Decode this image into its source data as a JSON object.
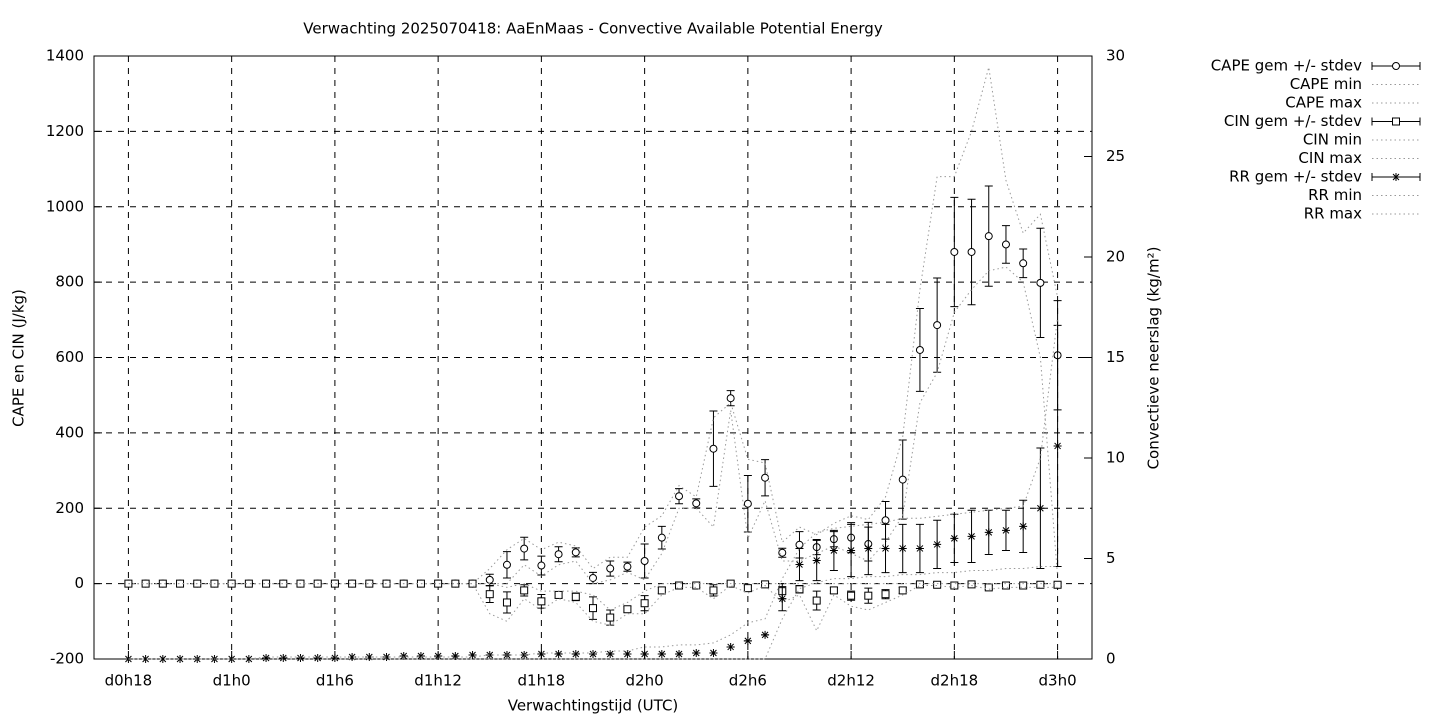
{
  "chart_data": {
    "type": "errorbar",
    "title": "Verwachting 2025070418: AaEnMaas - Convective Available Potential Energy",
    "xlabel": "Verwachtingstijd (UTC)",
    "ylabel": "CAPE en CIN (J/kg)",
    "y2label": "Convectieve neerslag (kg/m²)",
    "grid": true,
    "legend": "right",
    "x": [
      18,
      19,
      20,
      21,
      22,
      23,
      24,
      25,
      26,
      27,
      28,
      29,
      30,
      31,
      32,
      33,
      34,
      35,
      36,
      37,
      38,
      39,
      40,
      41,
      42,
      43,
      44,
      45,
      46,
      47,
      48,
      49,
      50,
      51,
      52,
      53,
      54,
      55,
      56,
      57,
      58,
      59,
      60,
      61,
      62,
      63,
      64,
      65,
      66,
      67,
      68,
      69,
      70,
      71,
      72
    ],
    "xlim": [
      16,
      74
    ],
    "xticks": [
      {
        "value": 18,
        "label": "d0h18"
      },
      {
        "value": 24,
        "label": "d1h0"
      },
      {
        "value": 30,
        "label": "d1h6"
      },
      {
        "value": 36,
        "label": "d1h12"
      },
      {
        "value": 42,
        "label": "d1h18"
      },
      {
        "value": 48,
        "label": "d2h0"
      },
      {
        "value": 54,
        "label": "d2h6"
      },
      {
        "value": 60,
        "label": "d2h12"
      },
      {
        "value": 66,
        "label": "d2h18"
      },
      {
        "value": 72,
        "label": "d3h0"
      }
    ],
    "ylim": [
      -200,
      1400
    ],
    "yticks": [
      -200,
      0,
      200,
      400,
      600,
      800,
      1000,
      1200,
      1400
    ],
    "y2lim": [
      0,
      30
    ],
    "y2ticks": [
      0,
      5,
      10,
      15,
      20,
      25,
      30
    ],
    "series": [
      {
        "name": "CAPE gem +/- stdev",
        "style": "errorbars",
        "marker": "circle",
        "color": "#000000",
        "values": [
          0,
          0,
          0,
          0,
          0,
          0,
          0,
          0,
          0,
          0,
          0,
          0,
          0,
          0,
          0,
          0,
          0,
          0,
          0,
          0,
          0,
          10,
          50,
          93,
          48,
          78,
          83,
          15,
          40,
          45,
          60,
          122,
          232,
          213,
          358,
          492,
          212,
          281,
          82,
          103,
          97,
          118,
          122,
          105,
          168,
          276,
          620,
          686,
          880,
          880,
          922,
          900,
          850,
          798,
          606
        ],
        "stdev": [
          0,
          0,
          0,
          0,
          0,
          0,
          0,
          0,
          0,
          0,
          0,
          0,
          0,
          0,
          0,
          0,
          0,
          0,
          0,
          0,
          0,
          15,
          35,
          30,
          25,
          20,
          12,
          15,
          20,
          12,
          45,
          30,
          20,
          12,
          100,
          20,
          75,
          48,
          12,
          35,
          20,
          20,
          40,
          45,
          50,
          105,
          110,
          125,
          145,
          140,
          133,
          50,
          38,
          145,
          145
        ]
      },
      {
        "name": "CAPE min",
        "style": "dotted",
        "color": "#999999",
        "values": [
          0,
          0,
          0,
          0,
          0,
          0,
          0,
          0,
          0,
          0,
          0,
          0,
          0,
          0,
          0,
          0,
          0,
          0,
          0,
          0,
          0,
          0,
          0,
          50,
          20,
          50,
          60,
          0,
          10,
          30,
          10,
          80,
          200,
          200,
          150,
          460,
          120,
          220,
          60,
          60,
          80,
          100,
          80,
          60,
          110,
          180,
          480,
          560,
          720,
          780,
          830,
          840,
          800,
          600,
          20
        ]
      },
      {
        "name": "CAPE max",
        "style": "dotted",
        "color": "#999999",
        "values": [
          0,
          0,
          0,
          0,
          0,
          0,
          0,
          0,
          0,
          0,
          0,
          0,
          0,
          0,
          0,
          0,
          0,
          0,
          0,
          0,
          0,
          40,
          90,
          120,
          90,
          110,
          100,
          40,
          70,
          70,
          150,
          180,
          260,
          230,
          440,
          480,
          330,
          320,
          110,
          150,
          130,
          160,
          180,
          170,
          230,
          390,
          780,
          1080,
          1080,
          1200,
          1370,
          1070,
          930,
          980,
          760
        ]
      },
      {
        "name": "CIN gem +/- stdev",
        "style": "errorbars",
        "marker": "square",
        "color": "#000000",
        "values": [
          0,
          0,
          0,
          0,
          0,
          0,
          0,
          0,
          0,
          0,
          0,
          0,
          0,
          0,
          0,
          0,
          0,
          0,
          0,
          0,
          0,
          -28,
          -50,
          -18,
          -47,
          -30,
          -35,
          -65,
          -90,
          -68,
          -52,
          -18,
          -5,
          -5,
          -18,
          0,
          -12,
          -2,
          -20,
          -15,
          -45,
          -18,
          -32,
          -32,
          -28,
          -18,
          -2,
          -3,
          -5,
          -2,
          -10,
          -5,
          -5,
          -3,
          -3
        ],
        "stdev": [
          0,
          0,
          0,
          0,
          0,
          0,
          0,
          0,
          0,
          0,
          0,
          0,
          0,
          0,
          0,
          0,
          0,
          0,
          0,
          0,
          0,
          22,
          28,
          15,
          18,
          8,
          10,
          30,
          20,
          8,
          20,
          8,
          5,
          5,
          15,
          5,
          8,
          5,
          20,
          10,
          25,
          8,
          12,
          20,
          12,
          8,
          5,
          5,
          5,
          5,
          5,
          5,
          5,
          5,
          5
        ]
      },
      {
        "name": "CIN min",
        "style": "dotted",
        "color": "#999999",
        "values": [
          0,
          0,
          0,
          0,
          0,
          0,
          0,
          0,
          0,
          0,
          0,
          0,
          0,
          0,
          0,
          0,
          0,
          0,
          0,
          0,
          0,
          -80,
          -100,
          -40,
          -70,
          -40,
          -50,
          -100,
          -110,
          -80,
          -80,
          -30,
          -10,
          -10,
          -40,
          -5,
          -25,
          -5,
          -50,
          -30,
          -125,
          -30,
          -60,
          -70,
          -50,
          -30,
          -5,
          -5,
          -10,
          -5,
          -15,
          -10,
          -10,
          -10,
          -10
        ]
      },
      {
        "name": "CIN max",
        "style": "dotted",
        "color": "#999999",
        "values": [
          0,
          0,
          0,
          0,
          0,
          0,
          0,
          0,
          0,
          0,
          0,
          0,
          0,
          0,
          0,
          0,
          0,
          0,
          0,
          0,
          0,
          0,
          -10,
          0,
          -20,
          -20,
          -20,
          -30,
          -70,
          -50,
          -20,
          0,
          0,
          0,
          0,
          0,
          0,
          0,
          0,
          0,
          0,
          0,
          0,
          0,
          0,
          0,
          0,
          0,
          0,
          0,
          0,
          0,
          0,
          0,
          0
        ]
      },
      {
        "name": "RR gem +/- stdev",
        "style": "errorbars",
        "marker": "star",
        "color": "#000000",
        "axis": "y2",
        "values": [
          0,
          0,
          0,
          0,
          0,
          0,
          0,
          0,
          0.05,
          0.05,
          0.05,
          0.05,
          0.05,
          0.1,
          0.1,
          0.1,
          0.15,
          0.15,
          0.15,
          0.15,
          0.2,
          0.2,
          0.2,
          0.2,
          0.25,
          0.25,
          0.25,
          0.25,
          0.25,
          0.25,
          0.25,
          0.25,
          0.25,
          0.3,
          0.3,
          0.6,
          0.9,
          1.2,
          3.0,
          4.7,
          4.9,
          5.4,
          5.4,
          5.5,
          5.5,
          5.5,
          5.5,
          5.7,
          6.0,
          6.1,
          6.3,
          6.4,
          6.6,
          7.5,
          10.6
        ],
        "stdev": [
          0,
          0,
          0,
          0,
          0,
          0,
          0,
          0,
          0,
          0,
          0,
          0,
          0,
          0,
          0,
          0,
          0,
          0,
          0,
          0,
          0,
          0,
          0,
          0,
          0,
          0,
          0,
          0,
          0,
          0,
          0,
          0,
          0,
          0,
          0,
          0,
          0,
          0,
          0.6,
          0.8,
          1,
          1,
          1.3,
          1.3,
          1.2,
          1.2,
          1.2,
          1.2,
          1.2,
          1.3,
          1.1,
          1,
          1.3,
          3,
          6
        ]
      },
      {
        "name": "RR min",
        "style": "dotted",
        "color": "#999999",
        "axis": "y2",
        "values": [
          0,
          0,
          0,
          0,
          0,
          0,
          0,
          0,
          0,
          0,
          0,
          0,
          0,
          0,
          0,
          0,
          0,
          0,
          0,
          0,
          0,
          0,
          0,
          0,
          0,
          0,
          0,
          0,
          0,
          0,
          0,
          0,
          0,
          0,
          0,
          0,
          0,
          0,
          2.0,
          3.5,
          3.8,
          4.0,
          4.0,
          4.1,
          4.1,
          4.2,
          4.2,
          4.3,
          4.3,
          4.4,
          4.4,
          4.5,
          4.5,
          4.6,
          4.6
        ]
      },
      {
        "name": "RR max",
        "style": "dotted",
        "color": "#999999",
        "axis": "y2",
        "values": [
          0,
          0,
          0,
          0,
          0,
          0,
          0,
          0,
          0.1,
          0.1,
          0.1,
          0.1,
          0.1,
          0.1,
          0.1,
          0.1,
          0.1,
          0.1,
          0.1,
          0.1,
          0.1,
          0.2,
          0.2,
          0.2,
          0.3,
          0.3,
          0.3,
          0.3,
          0.4,
          0.4,
          0.6,
          0.6,
          0.7,
          0.7,
          0.8,
          1.2,
          1.8,
          2.0,
          4.0,
          5.5,
          6.3,
          6.5,
          6.6,
          6.7,
          6.8,
          7.0,
          7.0,
          7.1,
          7.2,
          7.3,
          7.4,
          7.5,
          7.6,
          10,
          17
        ]
      }
    ]
  }
}
